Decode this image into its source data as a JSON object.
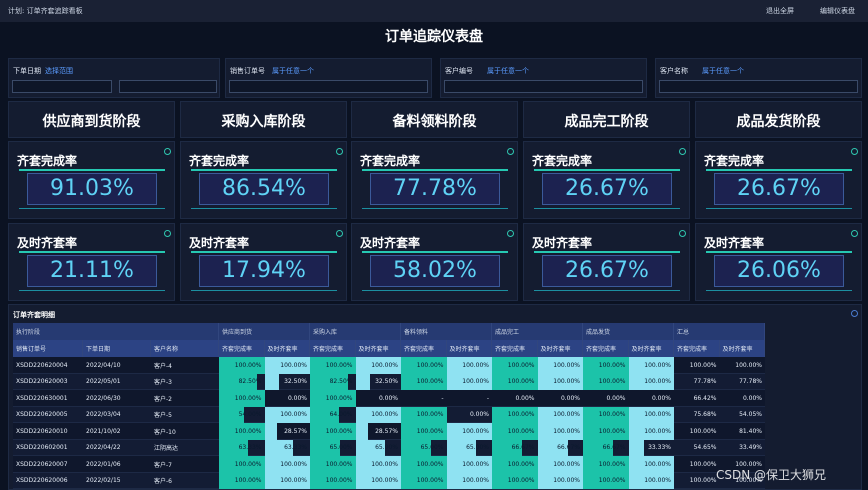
{
  "topbar": {
    "title": "计划: 订单齐套追踪看板",
    "actions": [
      "退出全屏",
      "编辑仪表盘"
    ]
  },
  "dashboard_title": "订单追踪仪表盘",
  "filters": [
    {
      "label": "下单日期",
      "placeholder": "选择范围"
    },
    {
      "label": "销售订单号",
      "placeholder": "属于任意一个"
    },
    {
      "label": "客户编号",
      "placeholder": "属于任意一个"
    },
    {
      "label": "客户名称",
      "placeholder": "属于任意一个"
    }
  ],
  "stages": [
    "供应商到货阶段",
    "采购入库阶段",
    "备料领料阶段",
    "成品完工阶段",
    "成品发货阶段"
  ],
  "kpi_rows": [
    {
      "label": "齐套完成率",
      "values": [
        "91.03%",
        "86.54%",
        "77.78%",
        "26.67%",
        "26.67%"
      ]
    },
    {
      "label": "及时齐套率",
      "values": [
        "21.11%",
        "17.94%",
        "58.02%",
        "26.67%",
        "26.06%"
      ]
    }
  ],
  "table": {
    "title": "订单齐套明细",
    "group_headers": [
      "执行阶段",
      "供应商到货",
      "采购入库",
      "备料领料",
      "成品完工",
      "成品发货",
      "汇总"
    ],
    "columns": [
      "销售订单号",
      "下单日期",
      "客户名称",
      "齐套完成率",
      "及时齐套率",
      "齐套完成率",
      "及时齐套率",
      "齐套完成率",
      "及时齐套率",
      "齐套完成率",
      "及时齐套率",
      "齐套完成率",
      "及时齐套率",
      "齐套完成率",
      "及时齐套率"
    ],
    "rows": [
      [
        "XSDD220620004",
        "2022/04/10",
        "客户-4",
        "100.00%",
        "100.00%",
        "100.00%",
        "100.00%",
        "100.00%",
        "100.00%",
        "100.00%",
        "100.00%",
        "100.00%",
        "100.00%",
        "100.00%",
        "100.00%"
      ],
      [
        "XSDD220620003",
        "2022/05/01",
        "客户-3",
        "82.50%",
        "32.50%",
        "82.50%",
        "32.50%",
        "100.00%",
        "100.00%",
        "100.00%",
        "100.00%",
        "100.00%",
        "100.00%",
        "77.78%",
        "77.78%"
      ],
      [
        "XSDD220630001",
        "2022/06/30",
        "客户-2",
        "100.00%",
        "0.00%",
        "100.00%",
        "0.00%",
        "-",
        "-",
        "0.00%",
        "0.00%",
        "0.00%",
        "0.00%",
        "66.42%",
        "0.00%"
      ],
      [
        "XSDD220620005",
        "2022/03/04",
        "客户-5",
        "54.00%",
        "100.00%",
        "64.00%",
        "100.00%",
        "100.00%",
        "0.00%",
        "100.00%",
        "100.00%",
        "100.00%",
        "100.00%",
        "75.68%",
        "54.05%"
      ],
      [
        "XSDD220620010",
        "2021/10/02",
        "客户-10",
        "100.00%",
        "28.57%",
        "100.00%",
        "28.57%",
        "100.00%",
        "100.00%",
        "100.00%",
        "100.00%",
        "100.00%",
        "100.00%",
        "100.00%",
        "81.40%"
      ],
      [
        "XSDD220602001",
        "2022/04/22",
        "江阴高达",
        "63.33%",
        "63.33%",
        "65.00%",
        "65.00%",
        "65.00%",
        "65.00%",
        "66.67%",
        "66.67%",
        "66.67%",
        "33.33%",
        "54.65%",
        "33.49%"
      ],
      [
        "XSDD220620007",
        "2022/01/06",
        "客户-7",
        "100.00%",
        "100.00%",
        "100.00%",
        "100.00%",
        "100.00%",
        "100.00%",
        "100.00%",
        "100.00%",
        "100.00%",
        "100.00%",
        "100.00%",
        "100.00%"
      ],
      [
        "XSDD220620006",
        "2022/02/15",
        "客户-6",
        "100.00%",
        "100.00%",
        "100.00%",
        "100.00%",
        "100.00%",
        "100.00%",
        "100.00%",
        "100.00%",
        "100.00%",
        "100.00%",
        "100.00%",
        "100.00%"
      ]
    ]
  },
  "watermark": "CSDN @保卫大狮兄"
}
